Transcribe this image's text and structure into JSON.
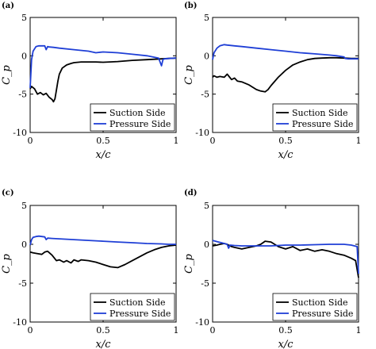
{
  "chart_data": [
    {
      "panel_label": "(a)",
      "type": "line",
      "xlabel": "x/c",
      "ylabel": "C_p",
      "xlim": [
        0,
        1
      ],
      "ylim": [
        -10,
        5
      ],
      "xticks": [
        "0",
        "0.5",
        "1"
      ],
      "yticks": [
        "-10",
        "-5",
        "0",
        "5"
      ],
      "legend_position": "bottom-right",
      "series": [
        {
          "name": "Suction Side",
          "color": "#000000",
          "x": [
            0.0,
            0.01,
            0.03,
            0.05,
            0.07,
            0.09,
            0.11,
            0.13,
            0.15,
            0.16,
            0.17,
            0.18,
            0.19,
            0.2,
            0.22,
            0.25,
            0.28,
            0.3,
            0.35,
            0.4,
            0.45,
            0.5,
            0.6,
            0.7,
            0.8,
            0.9,
            1.0
          ],
          "y": [
            -4.3,
            -4.0,
            -4.3,
            -5.0,
            -4.8,
            -5.1,
            -4.9,
            -5.4,
            -5.7,
            -6.0,
            -5.6,
            -4.5,
            -3.3,
            -2.4,
            -1.6,
            -1.2,
            -1.0,
            -0.9,
            -0.8,
            -0.8,
            -0.8,
            -0.85,
            -0.75,
            -0.6,
            -0.5,
            -0.4,
            -0.3
          ]
        },
        {
          "name": "Pressure Side",
          "color": "#1f3fd6",
          "x": [
            0.0,
            0.01,
            0.02,
            0.04,
            0.06,
            0.08,
            0.1,
            0.11,
            0.12,
            0.13,
            0.16,
            0.2,
            0.3,
            0.4,
            0.45,
            0.5,
            0.6,
            0.7,
            0.8,
            0.88,
            0.9,
            0.91,
            0.92,
            0.95,
            1.0
          ],
          "y": [
            -4.2,
            -0.5,
            0.6,
            1.2,
            1.3,
            1.3,
            1.3,
            0.8,
            1.2,
            1.15,
            1.1,
            1.0,
            0.8,
            0.6,
            0.4,
            0.5,
            0.4,
            0.2,
            0.0,
            -0.3,
            -1.3,
            -0.5,
            -0.4,
            -0.35,
            -0.3
          ]
        }
      ]
    },
    {
      "panel_label": "(b)",
      "type": "line",
      "xlabel": "x/c",
      "ylabel": "C_p",
      "xlim": [
        0,
        1
      ],
      "ylim": [
        -10,
        5
      ],
      "xticks": [
        "0",
        "0.5",
        "1"
      ],
      "yticks": [
        "-10",
        "-5",
        "0",
        "5"
      ],
      "legend_position": "bottom-right",
      "series": [
        {
          "name": "Suction Side",
          "color": "#000000",
          "x": [
            0.0,
            0.01,
            0.03,
            0.05,
            0.08,
            0.1,
            0.13,
            0.15,
            0.17,
            0.2,
            0.25,
            0.3,
            0.33,
            0.36,
            0.38,
            0.4,
            0.45,
            0.5,
            0.55,
            0.6,
            0.65,
            0.7,
            0.75,
            0.8,
            0.85,
            0.9,
            0.95,
            1.0
          ],
          "y": [
            -2.8,
            -2.6,
            -2.8,
            -2.7,
            -2.8,
            -2.4,
            -3.1,
            -2.9,
            -3.3,
            -3.4,
            -3.8,
            -4.4,
            -4.6,
            -4.7,
            -4.4,
            -3.9,
            -2.8,
            -1.9,
            -1.2,
            -0.8,
            -0.5,
            -0.35,
            -0.3,
            -0.25,
            -0.25,
            -0.3,
            -0.35,
            -0.35
          ]
        },
        {
          "name": "Pressure Side",
          "color": "#1f3fd6",
          "x": [
            0.0,
            0.01,
            0.03,
            0.05,
            0.08,
            0.1,
            0.15,
            0.2,
            0.3,
            0.4,
            0.5,
            0.6,
            0.7,
            0.8,
            0.85,
            0.9,
            0.91,
            0.93,
            0.96,
            1.0
          ],
          "y": [
            -0.5,
            0.4,
            1.0,
            1.3,
            1.45,
            1.4,
            1.3,
            1.2,
            1.0,
            0.8,
            0.6,
            0.4,
            0.25,
            0.1,
            0.0,
            -0.15,
            -0.35,
            -0.4,
            -0.4,
            -0.4
          ]
        }
      ]
    },
    {
      "panel_label": "(c)",
      "type": "line",
      "xlabel": "x/c",
      "ylabel": "C_p",
      "xlim": [
        0,
        1
      ],
      "ylim": [
        -10,
        5
      ],
      "xticks": [
        "0",
        "0.5",
        "1"
      ],
      "yticks": [
        "-10",
        "-5",
        "0",
        "5"
      ],
      "legend_position": "bottom-right",
      "series": [
        {
          "name": "Suction Side",
          "color": "#000000",
          "x": [
            0.0,
            0.02,
            0.05,
            0.08,
            0.1,
            0.12,
            0.15,
            0.18,
            0.2,
            0.23,
            0.25,
            0.28,
            0.3,
            0.33,
            0.35,
            0.4,
            0.45,
            0.5,
            0.55,
            0.6,
            0.65,
            0.7,
            0.75,
            0.8,
            0.85,
            0.9,
            0.95,
            1.0
          ],
          "y": [
            -1.0,
            -1.1,
            -1.2,
            -1.3,
            -1.0,
            -0.9,
            -1.4,
            -2.1,
            -2.0,
            -2.3,
            -2.1,
            -2.4,
            -2.0,
            -2.2,
            -2.0,
            -2.1,
            -2.3,
            -2.6,
            -2.9,
            -3.0,
            -2.6,
            -2.1,
            -1.6,
            -1.1,
            -0.7,
            -0.4,
            -0.2,
            -0.1
          ]
        },
        {
          "name": "Pressure Side",
          "color": "#1f3fd6",
          "x": [
            0.0,
            0.01,
            0.02,
            0.04,
            0.06,
            0.08,
            0.1,
            0.11,
            0.12,
            0.15,
            0.2,
            0.3,
            0.4,
            0.5,
            0.6,
            0.7,
            0.8,
            0.9,
            0.95,
            1.0
          ],
          "y": [
            -0.1,
            0.6,
            0.9,
            1.0,
            1.05,
            1.0,
            0.95,
            0.6,
            0.8,
            0.75,
            0.7,
            0.6,
            0.5,
            0.4,
            0.3,
            0.2,
            0.1,
            0.05,
            0.0,
            0.0
          ]
        }
      ]
    },
    {
      "panel_label": "(d)",
      "type": "line",
      "xlabel": "x/c",
      "ylabel": "C_p",
      "xlim": [
        0,
        1
      ],
      "ylim": [
        -10,
        5
      ],
      "xticks": [
        "0",
        "0.5",
        "1"
      ],
      "yticks": [
        "-10",
        "-5",
        "0",
        "5"
      ],
      "legend_position": "bottom-right",
      "series": [
        {
          "name": "Suction Side",
          "color": "#000000",
          "x": [
            0.0,
            0.03,
            0.05,
            0.08,
            0.1,
            0.13,
            0.15,
            0.2,
            0.25,
            0.3,
            0.33,
            0.36,
            0.4,
            0.45,
            0.5,
            0.55,
            0.6,
            0.65,
            0.7,
            0.75,
            0.8,
            0.85,
            0.9,
            0.95,
            0.98,
            1.0
          ],
          "y": [
            -0.2,
            -0.1,
            0.0,
            0.1,
            0.0,
            -0.3,
            -0.4,
            -0.6,
            -0.4,
            -0.2,
            0.0,
            0.4,
            0.3,
            -0.3,
            -0.6,
            -0.3,
            -0.8,
            -0.6,
            -0.9,
            -0.7,
            -0.9,
            -1.2,
            -1.4,
            -1.8,
            -2.1,
            -4.3
          ]
        },
        {
          "name": "Pressure Side",
          "color": "#1f3fd6",
          "x": [
            0.0,
            0.02,
            0.04,
            0.06,
            0.08,
            0.1,
            0.11,
            0.12,
            0.15,
            0.2,
            0.3,
            0.4,
            0.5,
            0.6,
            0.7,
            0.8,
            0.9,
            0.95,
            0.99,
            1.0
          ],
          "y": [
            0.5,
            0.4,
            0.3,
            0.2,
            0.1,
            0.0,
            -0.5,
            -0.1,
            -0.15,
            -0.2,
            -0.2,
            -0.2,
            -0.1,
            -0.1,
            -0.05,
            0.0,
            0.0,
            -0.1,
            -0.3,
            -3.8
          ]
        }
      ]
    }
  ]
}
